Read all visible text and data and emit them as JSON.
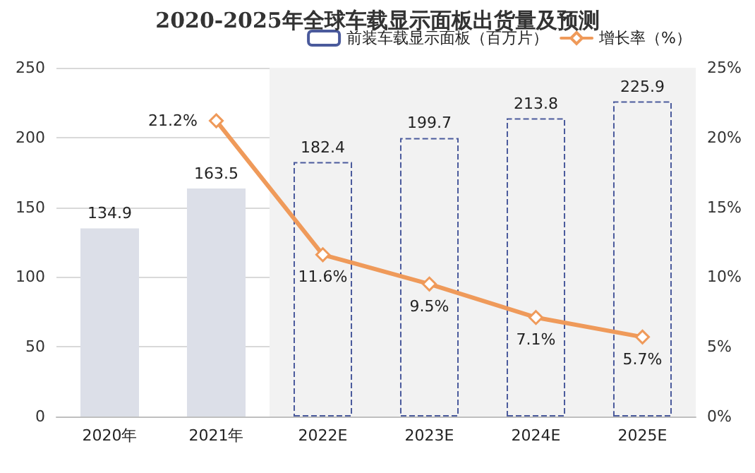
{
  "chart_data": {
    "type": "bar",
    "title": "2020-2025年全球车载显示面板出货量及预测",
    "categories": [
      "2020年",
      "2021年",
      "2022E",
      "2023E",
      "2024E",
      "2025E"
    ],
    "series": [
      {
        "color": "#dcdfe8",
        "values": [
          134.9,
          163.5,
          null,
          null,
          null,
          null
        ],
        "value_labels": [
          "134.9",
          "163.5",
          null,
          null,
          null,
          null
        ]
      },
      {
        "name": "前装车载显示面板（百万片）",
        "color": "#4a5a9c",
        "line_style": "dashed",
        "values": [
          null,
          null,
          182.4,
          199.7,
          213.8,
          225.9
        ],
        "value_labels": [
          null,
          null,
          "182.4",
          "199.7",
          "213.8",
          "225.9"
        ]
      },
      {
        "type": "line",
        "name": "增长率（%）",
        "axis": "y2",
        "color": "#ef9a5a",
        "marker": "diamond",
        "values": [
          null,
          21.2,
          11.6,
          9.5,
          7.1,
          5.7
        ],
        "value_labels": [
          null,
          "21.2%",
          "11.6%",
          "9.5%",
          "7.1%",
          "5.7%"
        ]
      }
    ],
    "ylim": [
      0,
      250
    ],
    "yticks": [
      0,
      50,
      100,
      150,
      200,
      250
    ],
    "y2lim": [
      0,
      25
    ],
    "y2ticks": [
      {
        "value": 0,
        "label": "0%"
      },
      {
        "value": 5,
        "label": "5%"
      },
      {
        "value": 10,
        "label": "10%"
      },
      {
        "value": 15,
        "label": "15%"
      },
      {
        "value": 20,
        "label": "20%"
      },
      {
        "value": 25,
        "label": "25%"
      }
    ],
    "bands": [
      {
        "axis": "x",
        "from": "2022E",
        "to": "2025E",
        "color": "#f2f2f2"
      }
    ],
    "grid": "y",
    "legend": "top right"
  }
}
